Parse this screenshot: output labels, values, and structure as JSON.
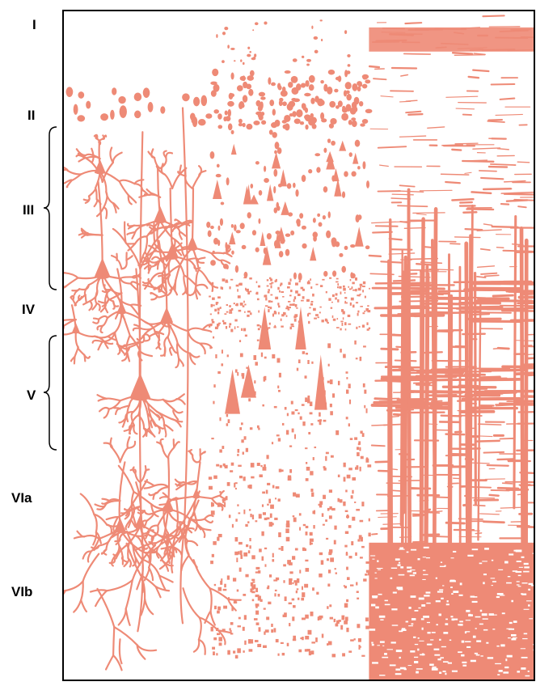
{
  "figure": {
    "accent_color": "#ee8a76",
    "layers": [
      {
        "id": "I",
        "label": "I"
      },
      {
        "id": "II",
        "label": "II"
      },
      {
        "id": "III",
        "label": "III"
      },
      {
        "id": "IV",
        "label": "IV"
      },
      {
        "id": "V",
        "label": "V"
      },
      {
        "id": "VIa",
        "label": "VIa"
      },
      {
        "id": "VIb",
        "label": "VIb"
      }
    ],
    "panels": [
      {
        "id": "golgi",
        "icon": "neuron-drawing-icon"
      },
      {
        "id": "nissl",
        "icon": "cell-body-stain-icon"
      },
      {
        "id": "weigert",
        "icon": "myelin-fiber-icon"
      }
    ]
  }
}
